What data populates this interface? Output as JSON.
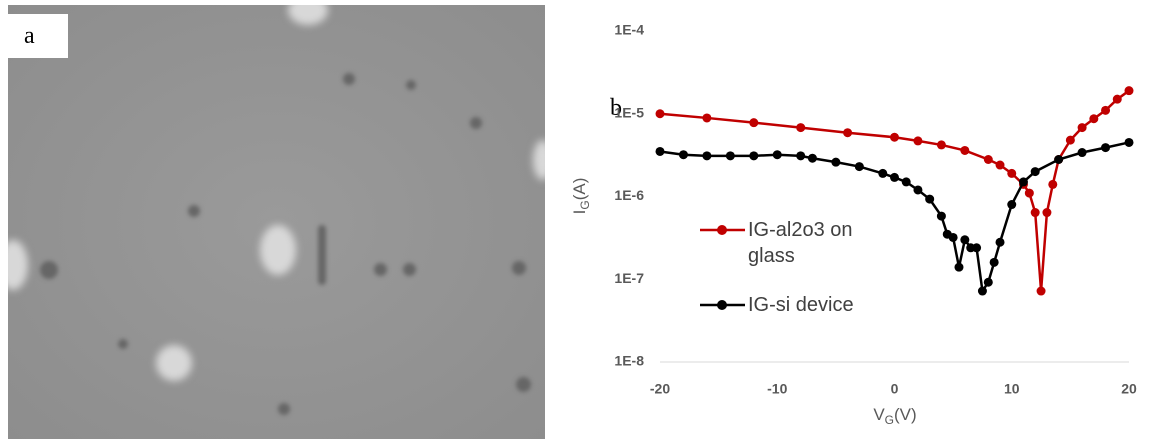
{
  "image": {
    "label": "a"
  },
  "chart_data": {
    "type": "line",
    "panel_label": "b",
    "xlabel": {
      "main": "V",
      "sub": "G",
      "rest": "(V)"
    },
    "ylabel": {
      "main": "I",
      "sub": "G",
      "rest": "(A)"
    },
    "xlim": [
      -20,
      20
    ],
    "xticks": [
      -20,
      -10,
      0,
      10,
      20
    ],
    "ylim": [
      1e-08,
      0.0001
    ],
    "log_y": true,
    "yticks": [
      {
        "value": 1e-08,
        "label": "1E-8"
      },
      {
        "value": 1e-07,
        "label": "1E-7"
      },
      {
        "value": 1e-06,
        "label": "1E-6"
      },
      {
        "value": 1e-05,
        "label": "1E-5"
      },
      {
        "value": 0.0001,
        "label": "1E-4"
      }
    ],
    "grid": false,
    "legend": "left",
    "series": [
      {
        "name": "IG-al2o3 on glass",
        "color": "#c00000",
        "x": [
          -20,
          -16,
          -12,
          -8,
          -4,
          0,
          2,
          4,
          6,
          8,
          9,
          10,
          11,
          11.5,
          12,
          12.5,
          13,
          13.5,
          14,
          15,
          16,
          17,
          18,
          19,
          20
        ],
        "values": [
          1e-05,
          8.9e-06,
          7.8e-06,
          6.8e-06,
          5.9e-06,
          5.2e-06,
          4.7e-06,
          4.2e-06,
          3.6e-06,
          2.8e-06,
          2.4e-06,
          1.9e-06,
          1.4e-06,
          1.1e-06,
          6.4e-07,
          7.2e-08,
          6.4e-07,
          1.4e-06,
          2.8e-06,
          4.8e-06,
          6.8e-06,
          8.7e-06,
          1.1e-05,
          1.5e-05,
          1.9e-05
        ]
      },
      {
        "name": "IG-si device",
        "color": "#000000",
        "x": [
          -20,
          -18,
          -16,
          -14,
          -12,
          -10,
          -8,
          -7,
          -5,
          -3,
          -1,
          0,
          1,
          2,
          3,
          4,
          4.5,
          5,
          5.5,
          6,
          6.5,
          7,
          7.5,
          8,
          8.5,
          9,
          10,
          11,
          12,
          14,
          16,
          18,
          20
        ],
        "values": [
          3.5e-06,
          3.2e-06,
          3.1e-06,
          3.1e-06,
          3.1e-06,
          3.2e-06,
          3.1e-06,
          2.9e-06,
          2.6e-06,
          2.3e-06,
          1.9e-06,
          1.7e-06,
          1.5e-06,
          1.2e-06,
          9.3e-07,
          5.8e-07,
          3.5e-07,
          3.2e-07,
          1.4e-07,
          3e-07,
          2.4e-07,
          2.4e-07,
          7.2e-08,
          9.2e-08,
          1.6e-07,
          2.8e-07,
          8e-07,
          1.5e-06,
          2e-06,
          2.8e-06,
          3.4e-06,
          3.9e-06,
          4.5e-06
        ]
      }
    ]
  }
}
